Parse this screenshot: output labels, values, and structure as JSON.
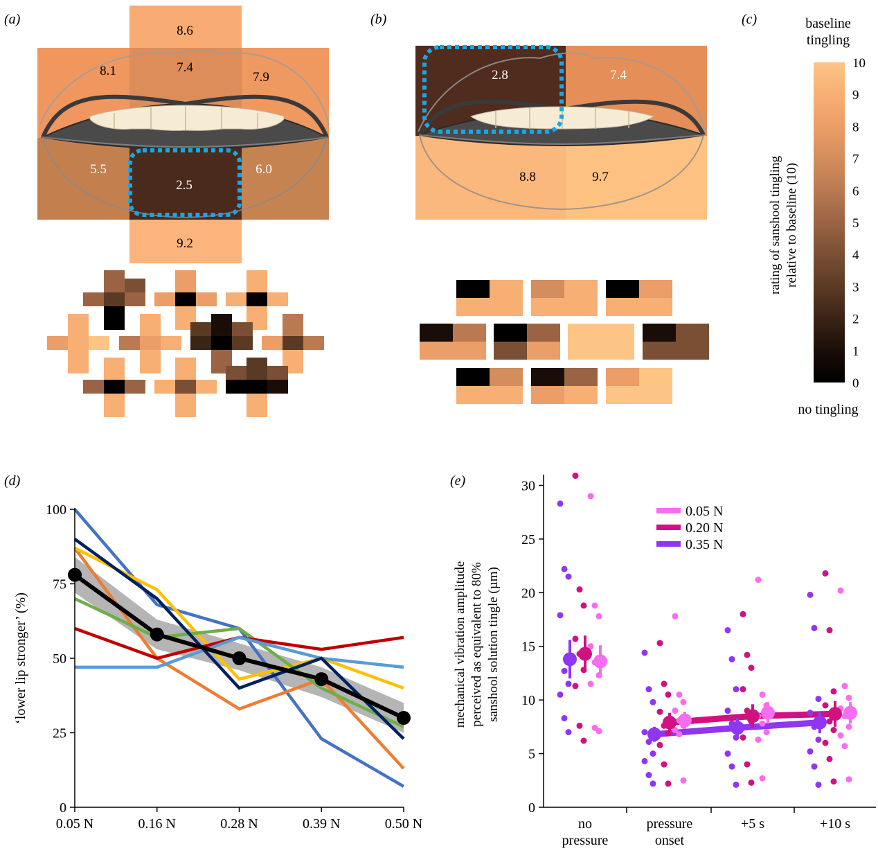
{
  "panels": {
    "a": {
      "label": "(a)",
      "ratings": {
        "upper_top": "8.6",
        "upper_left": "8.1",
        "upper_center": "7.4",
        "upper_right": "7.9",
        "lower_left": "5.5",
        "lower_center": "2.5",
        "lower_right": "6.0",
        "chin": "9.2"
      }
    },
    "b": {
      "label": "(b)",
      "ratings": {
        "upper_left": "2.8",
        "upper_right": "7.4",
        "lower_left": "8.8",
        "lower_right": "9.7"
      }
    },
    "c": {
      "label": "(c)",
      "top_label_1": "baseline",
      "top_label_2": "tingling",
      "bottom_label": "no tingling",
      "axis_label_1": "rating of sanshool tingling",
      "axis_label_2": "relative to baseline (10)",
      "ticks": [
        "0",
        "1",
        "2",
        "3",
        "4",
        "5",
        "6",
        "7",
        "8",
        "9",
        "10"
      ],
      "colors": [
        "#000000",
        "#1a0d08",
        "#3a2416",
        "#5b3a24",
        "#7a4f34",
        "#9a6444",
        "#b97a52",
        "#d48d5c",
        "#eb9e67",
        "#f8af74",
        "#fdc585"
      ]
    },
    "d": {
      "label": "(d)"
    },
    "e": {
      "label": "(e)"
    }
  },
  "chart_data": [
    {
      "type": "line",
      "panel": "d",
      "xlabel": "",
      "ylabel": "‘lower lip stronger’ (%)",
      "categories": [
        "0.05 N",
        "0.16 N",
        "0.28 N",
        "0.39 N",
        "0.50 N"
      ],
      "ylim": [
        0,
        100
      ],
      "yticks": [
        "0",
        "25",
        "50",
        "75",
        "100"
      ],
      "series": [
        {
          "color": "#4472c4",
          "values": [
            100,
            68,
            60,
            23,
            7
          ]
        },
        {
          "color": "#ed7d31",
          "values": [
            87,
            50,
            33,
            43,
            13
          ]
        },
        {
          "color": "#ffc000",
          "values": [
            87,
            73,
            43,
            50,
            40
          ]
        },
        {
          "color": "#70ad47",
          "values": [
            70,
            57,
            60,
            40,
            27
          ]
        },
        {
          "color": "#c00000",
          "values": [
            60,
            50,
            57,
            53,
            57
          ]
        },
        {
          "color": "#5b9bd5",
          "values": [
            47,
            47,
            57,
            50,
            47
          ]
        },
        {
          "color": "#002060",
          "values": [
            90,
            70,
            40,
            50,
            23
          ]
        }
      ],
      "mean": {
        "color": "#000000",
        "values": [
          78,
          58,
          50,
          43,
          30
        ]
      },
      "band": {
        "upper": [
          84,
          63,
          55,
          47,
          35
        ],
        "lower": [
          72,
          53,
          46,
          37,
          25
        ]
      }
    },
    {
      "type": "scatter",
      "panel": "e",
      "xlabel": "",
      "ylabel_lines": [
        "mechanical vibration amplitude",
        "perceived as equivalent to 80%",
        "sanshool solution tingle (µm)"
      ],
      "categories": [
        [
          "no",
          "pressure"
        ],
        [
          "pressure",
          "onset"
        ],
        [
          "+5 s"
        ],
        [
          "+10 s"
        ]
      ],
      "ylim": [
        0,
        31
      ],
      "yticks": [
        "0",
        "5",
        "10",
        "15",
        "20",
        "25",
        "30"
      ],
      "legend_position": "top-center",
      "series": [
        {
          "name": "0.05 N",
          "color": "#f76cf0",
          "means": [
            13.6,
            8.1,
            8.8,
            8.8
          ],
          "errors": [
            1.5,
            0.8,
            1.0,
            1.0
          ],
          "points": [
            [
              29,
              18.8,
              17.8,
              15.0,
              13.5,
              12.3,
              11.5,
              7.4,
              7.1
            ],
            [
              17.8,
              10.5,
              9.8,
              9.0,
              8.1,
              7.6,
              7.2,
              6.8,
              2.5
            ],
            [
              21.2,
              10.5,
              9.5,
              8.5,
              7.8,
              7.0,
              6.3,
              2.7
            ],
            [
              20.2,
              11.3,
              10.2,
              9.2,
              8.5,
              7.5,
              6.7,
              5.7,
              2.6
            ]
          ]
        },
        {
          "name": "0.20 N",
          "color": "#d1117f",
          "means": [
            14.3,
            7.9,
            8.5,
            8.7
          ],
          "errors": [
            1.7,
            0.9,
            1.1,
            1.2
          ],
          "points": [
            [
              30.9,
              20.3,
              18.8,
              15.7,
              14.3,
              12.8,
              11.3,
              7.6,
              6.2
            ],
            [
              15.3,
              11.5,
              10.5,
              8.9,
              7.6,
              6.9,
              5.8,
              4.0,
              2.2
            ],
            [
              18.0,
              14.2,
              13.0,
              11.0,
              9.0,
              8.0,
              6.5,
              4.0,
              2.3
            ],
            [
              21.8,
              16.5,
              10.8,
              9.5,
              8.0,
              7.2,
              6.0,
              4.5,
              2.4
            ]
          ]
        },
        {
          "name": "0.35 N",
          "color": "#8e36f2",
          "means": [
            13.8,
            6.8,
            7.4,
            7.9
          ],
          "errors": [
            1.8,
            0.7,
            0.9,
            1.0
          ],
          "points": [
            [
              28.3,
              22.2,
              21.5,
              17.9,
              12.7,
              11.5,
              10.5,
              8.3,
              7.0
            ],
            [
              14.4,
              11.0,
              9.8,
              7.0,
              6.1,
              5.0,
              4.3,
              3.0,
              2.2
            ],
            [
              16.5,
              13.8,
              11.0,
              9.0,
              7.8,
              6.5,
              5.0,
              3.8,
              2.1
            ],
            [
              19.8,
              16.7,
              10.1,
              8.8,
              7.5,
              6.3,
              5.2,
              3.8,
              2.1
            ]
          ]
        }
      ],
      "mean_lines": [
        "0.20 N",
        "0.35 N"
      ]
    }
  ]
}
